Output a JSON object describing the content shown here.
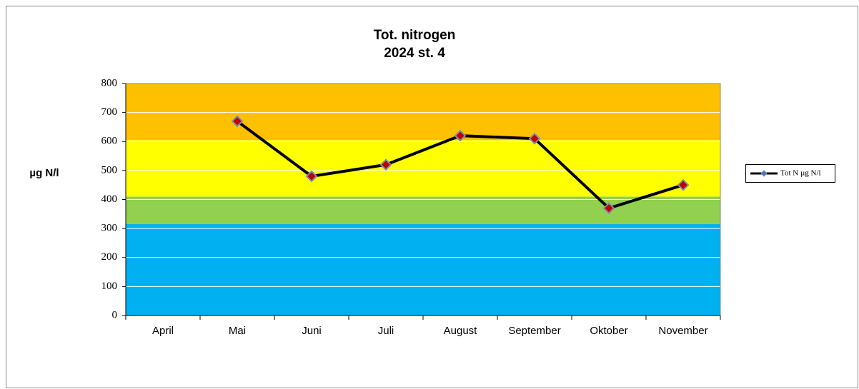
{
  "chart_data": {
    "type": "line",
    "title": "Tot. nitrogen",
    "subtitle": "2024 st. 4",
    "y_label": "µg N/l",
    "categories": [
      "April",
      "Mai",
      "Juni",
      "Juli",
      "August",
      "September",
      "Oktober",
      "November"
    ],
    "series": [
      {
        "name": "Tot N µg N/l",
        "color": "#000000",
        "marker_color": "#c00000",
        "values": [
          null,
          670,
          480,
          520,
          620,
          610,
          370,
          450
        ]
      }
    ],
    "ylim": [
      0,
      800
    ],
    "yticks": [
      0,
      100,
      200,
      300,
      400,
      500,
      600,
      700,
      800
    ],
    "grid": true,
    "legend": "right",
    "bands": [
      {
        "from": 0,
        "to": 315,
        "color": "#00b0f0"
      },
      {
        "from": 315,
        "to": 410,
        "color": "#92d050"
      },
      {
        "from": 410,
        "to": 605,
        "color": "#ffff00"
      },
      {
        "from": 605,
        "to": 800,
        "color": "#ffc000"
      }
    ]
  }
}
